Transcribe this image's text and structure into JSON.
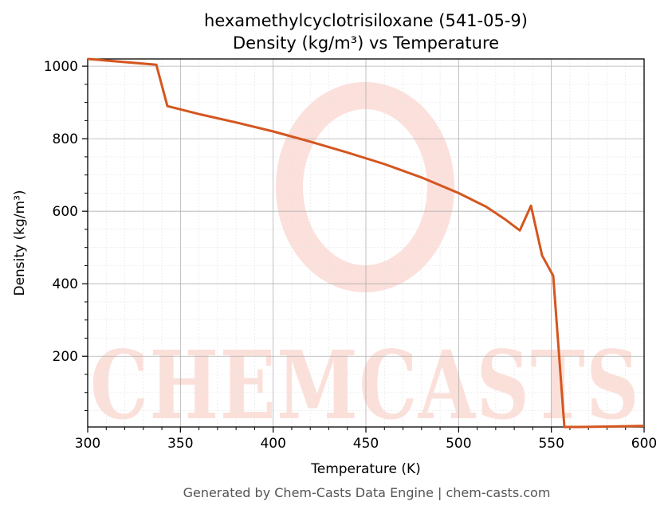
{
  "chart_data": {
    "type": "line",
    "title": "hexamethylcyclotrisiloxane (541-05-9)",
    "subtitle": "Density (kg/m³) vs Temperature",
    "xlabel": "Temperature (K)",
    "ylabel": "Density (kg/m³)",
    "xlim": [
      300,
      600
    ],
    "ylim": [
      5,
      1020
    ],
    "x_ticks": [
      300,
      350,
      400,
      450,
      500,
      550,
      600
    ],
    "y_ticks": [
      200,
      400,
      600,
      800,
      1000
    ],
    "grid": true,
    "legend": "none",
    "series": [
      {
        "color": "#d4561f",
        "x": [
          300,
          337,
          343,
          360,
          380,
          400,
          420,
          440,
          460,
          480,
          500,
          515,
          525,
          533,
          539,
          545,
          551,
          557,
          565,
          580,
          600
        ],
        "y": [
          1020,
          1004,
          890,
          868,
          845,
          820,
          792,
          762,
          730,
          693,
          650,
          612,
          578,
          547,
          615,
          478,
          422,
          5,
          5,
          6,
          8
        ]
      }
    ]
  },
  "watermark": {
    "text": "CHEMCASTS",
    "color": "#f9c7bd"
  },
  "footer": {
    "text": "Generated by Chem-Casts Data Engine | chem-casts.com"
  }
}
